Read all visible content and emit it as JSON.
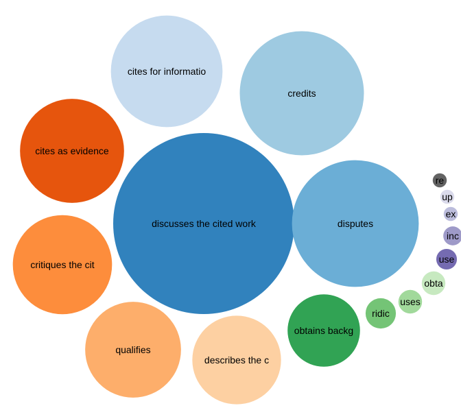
{
  "chart_data": {
    "type": "bubble",
    "title": "",
    "bubbles": [
      {
        "label": "discusses the cited work",
        "value": 100,
        "color": "#3182bd"
      },
      {
        "label": "disputes",
        "value": 49,
        "color": "#6baed6"
      },
      {
        "label": "credits",
        "value": 47,
        "color": "#9ecae1"
      },
      {
        "label": "cites for informatio",
        "value": 38,
        "color": "#c6dbef"
      },
      {
        "label": "cites as evidence",
        "value": 33,
        "color": "#e6550d"
      },
      {
        "label": "critiques the cit",
        "value": 30,
        "color": "#fd8d3c"
      },
      {
        "label": "qualifies",
        "value": 28,
        "color": "#fdae6b"
      },
      {
        "label": "describes the c",
        "value": 24,
        "color": "#fdd0a2"
      },
      {
        "label": "obtains backg",
        "value": 16,
        "color": "#31a354"
      },
      {
        "label": "ridic",
        "value": 2.8,
        "color": "#74c476"
      },
      {
        "label": "uses",
        "value": 1.7,
        "color": "#a1d99b"
      },
      {
        "label": "obta",
        "value": 1.7,
        "color": "#c7e9c0"
      },
      {
        "label": "use",
        "value": 1.3,
        "color": "#756bb1"
      },
      {
        "label": "inc",
        "value": 1.1,
        "color": "#9e9ac8"
      },
      {
        "label": "ex",
        "value": 0.6,
        "color": "#bcbddc"
      },
      {
        "label": "up",
        "value": 0.6,
        "color": "#dadaeb"
      },
      {
        "label": "re",
        "value": 0.6,
        "color": "#636363"
      }
    ]
  }
}
